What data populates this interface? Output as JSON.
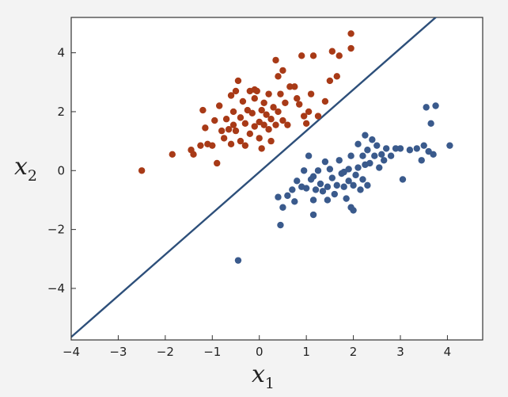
{
  "chart_data": {
    "type": "scatter",
    "title": "",
    "xlabel": {
      "base": "x",
      "sub": "1"
    },
    "ylabel": {
      "base": "x",
      "sub": "2"
    },
    "xlim": [
      -4,
      4.75
    ],
    "ylim": [
      -5.75,
      5.2
    ],
    "x_ticks": [
      -4,
      -3,
      -2,
      -1,
      0,
      1,
      2,
      3,
      4
    ],
    "y_ticks": [
      -4,
      -2,
      0,
      2,
      4
    ],
    "x_tick_labels": [
      "−4",
      "−3",
      "−2",
      "−1",
      "0",
      "1",
      "2",
      "3",
      "4"
    ],
    "y_tick_labels": [
      "−4",
      "−2",
      "0",
      "2",
      "4"
    ],
    "grid": false,
    "decision_line": {
      "slope": 1.4,
      "intercept": -0.05,
      "color": "#2d4f7a"
    },
    "series": [
      {
        "color": "#a83a17",
        "points": [
          [
            -2.5,
            0.0
          ],
          [
            -1.85,
            0.55
          ],
          [
            -1.45,
            0.7
          ],
          [
            -1.4,
            0.55
          ],
          [
            -1.25,
            0.85
          ],
          [
            -1.2,
            2.05
          ],
          [
            -1.15,
            1.45
          ],
          [
            -1.1,
            0.9
          ],
          [
            -1.0,
            0.85
          ],
          [
            -0.95,
            1.7
          ],
          [
            -0.9,
            0.25
          ],
          [
            -0.85,
            2.2
          ],
          [
            -0.8,
            1.35
          ],
          [
            -0.75,
            1.1
          ],
          [
            -0.7,
            1.75
          ],
          [
            -0.65,
            1.4
          ],
          [
            -0.6,
            2.55
          ],
          [
            -0.6,
            0.9
          ],
          [
            -0.55,
            2.0
          ],
          [
            -0.5,
            1.35
          ],
          [
            -0.5,
            2.7
          ],
          [
            -0.45,
            3.05
          ],
          [
            -0.4,
            1.8
          ],
          [
            -0.4,
            1.0
          ],
          [
            -0.35,
            2.35
          ],
          [
            -0.3,
            1.6
          ],
          [
            -0.3,
            0.85
          ],
          [
            -0.25,
            2.05
          ],
          [
            -0.2,
            2.7
          ],
          [
            -0.2,
            1.25
          ],
          [
            -0.15,
            1.95
          ],
          [
            -0.1,
            1.5
          ],
          [
            -0.1,
            2.45
          ],
          [
            -0.05,
            2.7
          ],
          [
            0.0,
            1.65
          ],
          [
            0.0,
            1.1
          ],
          [
            0.05,
            0.75
          ],
          [
            0.05,
            2.05
          ],
          [
            0.1,
            1.55
          ],
          [
            0.1,
            2.3
          ],
          [
            0.15,
            1.9
          ],
          [
            0.2,
            1.4
          ],
          [
            0.2,
            2.6
          ],
          [
            0.25,
            1.75
          ],
          [
            0.3,
            2.15
          ],
          [
            0.35,
            1.55
          ],
          [
            0.4,
            3.2
          ],
          [
            0.4,
            2.0
          ],
          [
            0.45,
            2.6
          ],
          [
            0.5,
            1.7
          ],
          [
            0.5,
            3.4
          ],
          [
            0.55,
            2.3
          ],
          [
            0.6,
            1.55
          ],
          [
            0.65,
            2.85
          ],
          [
            0.75,
            2.85
          ],
          [
            0.8,
            2.45
          ],
          [
            0.85,
            2.25
          ],
          [
            0.9,
            3.9
          ],
          [
            0.95,
            1.85
          ],
          [
            1.05,
            2.0
          ],
          [
            1.1,
            2.6
          ],
          [
            1.15,
            3.9
          ],
          [
            1.25,
            1.85
          ],
          [
            1.4,
            2.35
          ],
          [
            1.5,
            3.05
          ],
          [
            1.55,
            4.05
          ],
          [
            1.65,
            3.2
          ],
          [
            1.7,
            3.9
          ],
          [
            1.95,
            4.65
          ],
          [
            1.95,
            4.15
          ],
          [
            -0.1,
            2.75
          ],
          [
            0.35,
            3.75
          ],
          [
            1.0,
            1.6
          ],
          [
            -0.55,
            1.55
          ],
          [
            0.25,
            1.0
          ]
        ]
      },
      {
        "color": "#3a5a8c",
        "points": [
          [
            -0.45,
            -3.05
          ],
          [
            0.4,
            -0.9
          ],
          [
            0.45,
            -1.85
          ],
          [
            0.5,
            -1.25
          ],
          [
            0.6,
            -0.85
          ],
          [
            0.7,
            -0.65
          ],
          [
            0.75,
            -1.05
          ],
          [
            0.8,
            -0.35
          ],
          [
            0.9,
            -0.55
          ],
          [
            0.95,
            0.0
          ],
          [
            1.0,
            -0.6
          ],
          [
            1.05,
            0.5
          ],
          [
            1.1,
            -0.3
          ],
          [
            1.15,
            -1.0
          ],
          [
            1.15,
            -1.5
          ],
          [
            1.2,
            -0.65
          ],
          [
            1.25,
            0.0
          ],
          [
            1.3,
            -0.45
          ],
          [
            1.35,
            -0.7
          ],
          [
            1.4,
            0.3
          ],
          [
            1.45,
            -0.55
          ],
          [
            1.5,
            0.05
          ],
          [
            1.55,
            -0.25
          ],
          [
            1.6,
            -0.8
          ],
          [
            1.65,
            -0.5
          ],
          [
            1.7,
            0.35
          ],
          [
            1.75,
            -0.1
          ],
          [
            1.8,
            -0.55
          ],
          [
            1.85,
            -0.95
          ],
          [
            1.9,
            -0.35
          ],
          [
            1.95,
            0.5
          ],
          [
            1.95,
            -1.25
          ],
          [
            2.0,
            -0.5
          ],
          [
            2.05,
            -0.15
          ],
          [
            2.1,
            0.9
          ],
          [
            2.1,
            0.1
          ],
          [
            2.15,
            -0.65
          ],
          [
            2.2,
            -0.3
          ],
          [
            2.2,
            0.5
          ],
          [
            2.25,
            1.2
          ],
          [
            2.3,
            0.7
          ],
          [
            2.3,
            -0.5
          ],
          [
            2.35,
            0.25
          ],
          [
            2.4,
            1.05
          ],
          [
            2.45,
            0.5
          ],
          [
            2.5,
            0.85
          ],
          [
            2.55,
            0.1
          ],
          [
            2.6,
            0.55
          ],
          [
            2.7,
            0.75
          ],
          [
            2.8,
            0.5
          ],
          [
            2.9,
            0.75
          ],
          [
            3.0,
            0.75
          ],
          [
            3.05,
            -0.3
          ],
          [
            3.2,
            0.7
          ],
          [
            3.35,
            0.75
          ],
          [
            3.5,
            0.85
          ],
          [
            3.55,
            2.15
          ],
          [
            3.6,
            0.65
          ],
          [
            3.65,
            1.6
          ],
          [
            3.7,
            0.55
          ],
          [
            3.75,
            2.2
          ],
          [
            4.05,
            0.85
          ],
          [
            1.9,
            0.05
          ],
          [
            2.25,
            0.2
          ],
          [
            1.45,
            -1.0
          ],
          [
            1.15,
            -0.2
          ],
          [
            3.45,
            0.35
          ],
          [
            2.65,
            0.35
          ],
          [
            1.8,
            -0.05
          ],
          [
            2.0,
            -1.35
          ]
        ]
      }
    ]
  }
}
